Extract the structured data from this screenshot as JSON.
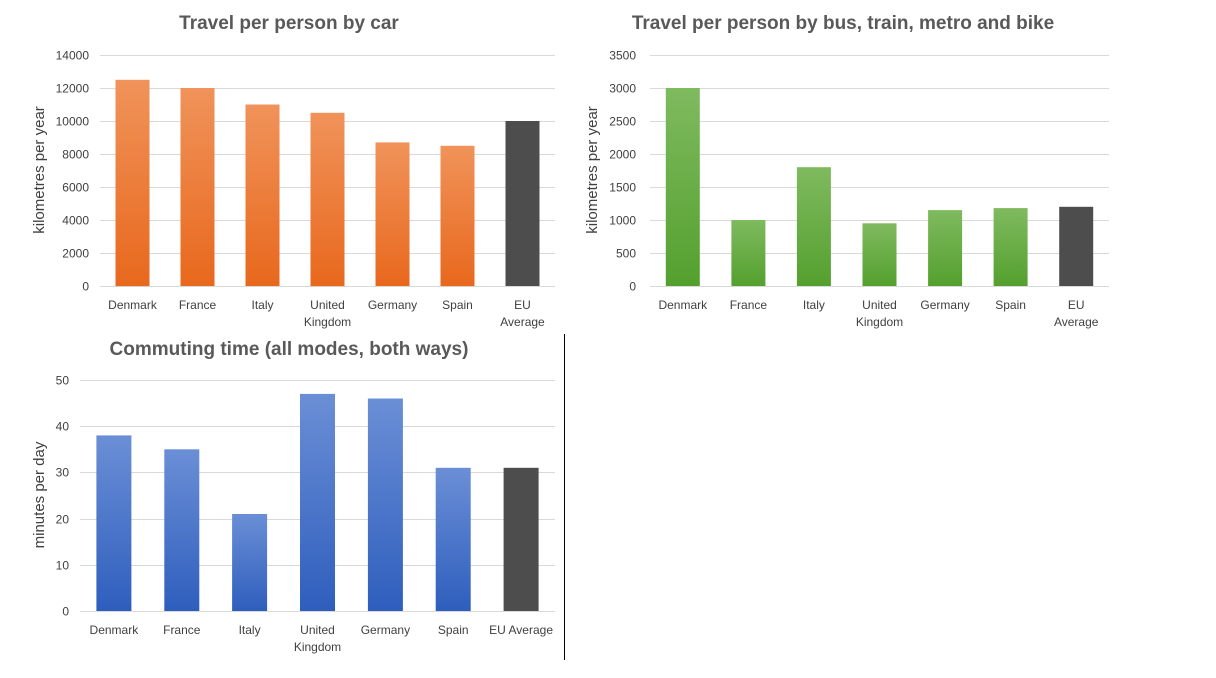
{
  "colors": {
    "car_bar_top": "#f0935a",
    "car_bar_bottom": "#e8681d",
    "transit_bar_top": "#7fba5f",
    "transit_bar_bottom": "#54a02e",
    "commute_bar_top": "#6b8fd6",
    "commute_bar_bottom": "#2e5ebd",
    "eu_average_bar": "#4d4d4d",
    "divider": "#000000"
  },
  "chart_data": [
    {
      "id": "car",
      "type": "bar",
      "title": "Travel per person by car",
      "xlabel": "",
      "ylabel": "kilometres per year",
      "categories": [
        [
          "Denmark"
        ],
        [
          "France"
        ],
        [
          "Italy"
        ],
        [
          "United",
          "Kingdom"
        ],
        [
          "Germany"
        ],
        [
          "Spain"
        ],
        [
          "EU",
          "Average"
        ]
      ],
      "values": [
        12500,
        12000,
        11000,
        10500,
        8700,
        8500,
        10000
      ],
      "ylim": [
        0,
        14000
      ],
      "yticks": [
        0,
        2000,
        4000,
        6000,
        8000,
        10000,
        12000,
        14000
      ],
      "grid": true,
      "legend": "none"
    },
    {
      "id": "transit",
      "type": "bar",
      "title": "Travel per person by bus, train, metro and bike",
      "xlabel": "",
      "ylabel": "kilometres per year",
      "categories": [
        [
          "Denmark"
        ],
        [
          "France"
        ],
        [
          "Italy"
        ],
        [
          "United",
          "Kingdom"
        ],
        [
          "Germany"
        ],
        [
          "Spain"
        ],
        [
          "EU",
          "Average"
        ]
      ],
      "values": [
        3000,
        1000,
        1800,
        950,
        1150,
        1180,
        1200
      ],
      "ylim": [
        0,
        3500
      ],
      "yticks": [
        0,
        500,
        1000,
        1500,
        2000,
        2500,
        3000,
        3500
      ],
      "grid": true,
      "legend": "none"
    },
    {
      "id": "commute",
      "type": "bar",
      "title": "Commuting time (all modes, both ways)",
      "xlabel": "",
      "ylabel": "minutes per day",
      "categories": [
        [
          "Denmark"
        ],
        [
          "France"
        ],
        [
          "Italy"
        ],
        [
          "United",
          "Kingdom"
        ],
        [
          "Germany"
        ],
        [
          "Spain"
        ],
        [
          "EU Average"
        ]
      ],
      "values": [
        38,
        35,
        21,
        47,
        46,
        31,
        31
      ],
      "ylim": [
        0,
        50
      ],
      "yticks": [
        0,
        10,
        20,
        30,
        40,
        50
      ],
      "grid": true,
      "legend": "none"
    }
  ]
}
